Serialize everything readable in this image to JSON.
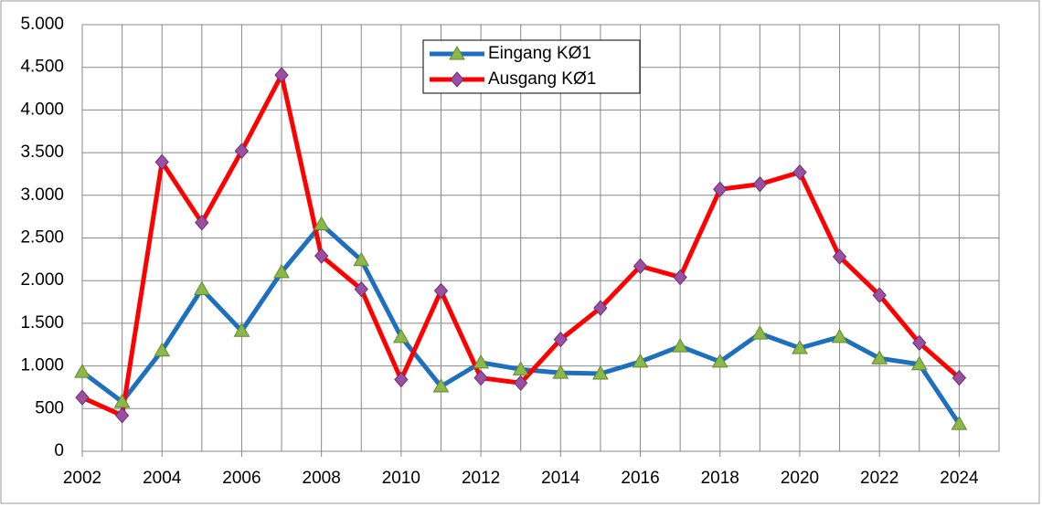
{
  "chart_data": {
    "type": "line",
    "x": [
      2002,
      2003,
      2004,
      2005,
      2006,
      2007,
      2008,
      2009,
      2010,
      2011,
      2012,
      2013,
      2014,
      2015,
      2016,
      2017,
      2018,
      2019,
      2020,
      2021,
      2022,
      2023,
      2024
    ],
    "series": [
      {
        "name": "Eingang KØ1",
        "color": "#1f6fbf",
        "marker_color": "#8cb84a",
        "marker": "triangle",
        "values": [
          930,
          580,
          1180,
          1900,
          1410,
          2100,
          2660,
          2240,
          1340,
          760,
          1040,
          960,
          920,
          910,
          1050,
          1230,
          1050,
          1380,
          1210,
          1340,
          1090,
          1020,
          320
        ]
      },
      {
        "name": "Ausgang KØ1",
        "color": "#ff0000",
        "marker_color": "#9b4fa0",
        "marker": "diamond",
        "values": [
          630,
          420,
          3390,
          2680,
          3520,
          4410,
          2290,
          1900,
          840,
          1880,
          860,
          800,
          1310,
          1680,
          2170,
          2040,
          3070,
          3130,
          3270,
          2280,
          1830,
          1270,
          860
        ]
      }
    ],
    "xlim": [
      2002,
      2025
    ],
    "xticks": [
      2002,
      2004,
      2006,
      2008,
      2010,
      2012,
      2014,
      2016,
      2018,
      2020,
      2022,
      2024
    ],
    "xminorticks": [
      2003,
      2005,
      2007,
      2009,
      2011,
      2013,
      2015,
      2017,
      2019,
      2021,
      2023,
      2025
    ],
    "ylim": [
      0,
      5000
    ],
    "yticks": [
      {
        "value": 0,
        "label": "0"
      },
      {
        "value": 500,
        "label": "500"
      },
      {
        "value": 1000,
        "label": "1.000"
      },
      {
        "value": 1500,
        "label": "1.500"
      },
      {
        "value": 2000,
        "label": "2.000"
      },
      {
        "value": 2500,
        "label": "2.500"
      },
      {
        "value": 3000,
        "label": "3.000"
      },
      {
        "value": 3500,
        "label": "3.500"
      },
      {
        "value": 4000,
        "label": "4.000"
      },
      {
        "value": 4500,
        "label": "4.500"
      },
      {
        "value": 5000,
        "label": "5.000"
      }
    ],
    "grid": true
  }
}
